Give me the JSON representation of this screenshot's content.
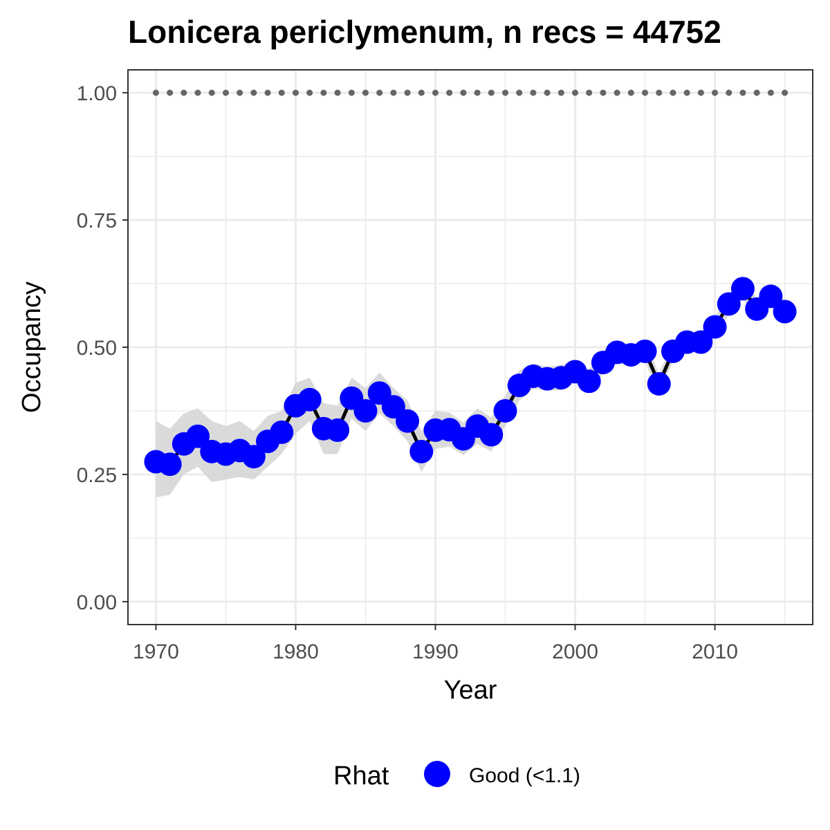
{
  "chart_data": {
    "type": "line",
    "title": "Lonicera periclymenum, n recs = 44752",
    "xlabel": "Year",
    "ylabel": "Occupancy",
    "xlim": [
      1968,
      2017
    ],
    "ylim": [
      -0.045,
      1.045
    ],
    "xticks": [
      1970,
      1980,
      1990,
      2000,
      2010
    ],
    "xtick_labels": [
      "1970",
      "1980",
      "1990",
      "2000",
      "2010"
    ],
    "yticks": [
      0,
      0.25,
      0.5,
      0.75,
      1
    ],
    "ytick_labels": [
      "0.00",
      "0.25",
      "0.50",
      "0.75",
      "1.00"
    ],
    "grid": true,
    "legend": {
      "title": "Rhat",
      "position": "bottom",
      "entries": [
        {
          "label": "Good (<1.1)",
          "color": "#0000ff"
        }
      ]
    },
    "colors": {
      "points": "#0000ff",
      "line": "#000000",
      "ribbon": "#d3d3d3",
      "reference": "#666666",
      "grid": "#ebebeb",
      "border": "#333333"
    },
    "reference_line": {
      "y": 1.0,
      "style": "dotted"
    },
    "x": [
      1970,
      1971,
      1972,
      1973,
      1974,
      1975,
      1976,
      1977,
      1978,
      1979,
      1980,
      1981,
      1982,
      1983,
      1984,
      1985,
      1986,
      1987,
      1988,
      1989,
      1990,
      1991,
      1992,
      1993,
      1994,
      1995,
      1996,
      1997,
      1998,
      1999,
      2000,
      2001,
      2002,
      2003,
      2004,
      2005,
      2006,
      2007,
      2008,
      2009,
      2010,
      2011,
      2012,
      2013,
      2014,
      2015
    ],
    "series": [
      {
        "values": [
          0.275,
          0.27,
          0.31,
          0.325,
          0.295,
          0.29,
          0.297,
          0.285,
          0.315,
          0.333,
          0.385,
          0.397,
          0.34,
          0.337,
          0.4,
          0.375,
          0.41,
          0.383,
          0.355,
          0.295,
          0.337,
          0.338,
          0.32,
          0.345,
          0.328,
          0.375,
          0.425,
          0.443,
          0.438,
          0.44,
          0.452,
          0.433,
          0.47,
          0.49,
          0.485,
          0.492,
          0.428,
          0.492,
          0.51,
          0.51,
          0.54,
          0.585,
          0.615,
          0.575,
          0.6,
          0.57
        ],
        "lower": [
          0.205,
          0.21,
          0.25,
          0.265,
          0.235,
          0.24,
          0.245,
          0.24,
          0.265,
          0.29,
          0.33,
          0.355,
          0.29,
          0.29,
          0.36,
          0.335,
          0.37,
          0.345,
          0.315,
          0.255,
          0.3,
          0.305,
          0.288,
          0.31,
          0.295,
          0.345,
          0.395,
          0.418,
          0.415,
          0.415,
          0.43,
          0.41,
          0.448,
          0.468,
          0.465,
          0.472,
          0.408,
          0.473,
          0.49,
          0.49,
          0.52,
          0.565,
          0.595,
          0.555,
          0.58,
          0.55
        ],
        "upper": [
          0.355,
          0.34,
          0.37,
          0.38,
          0.355,
          0.345,
          0.355,
          0.335,
          0.365,
          0.375,
          0.43,
          0.44,
          0.39,
          0.385,
          0.44,
          0.42,
          0.45,
          0.42,
          0.395,
          0.335,
          0.375,
          0.372,
          0.352,
          0.38,
          0.362,
          0.405,
          0.455,
          0.468,
          0.462,
          0.465,
          0.474,
          0.456,
          0.492,
          0.512,
          0.505,
          0.512,
          0.448,
          0.511,
          0.53,
          0.53,
          0.56,
          0.605,
          0.635,
          0.595,
          0.62,
          0.59
        ]
      }
    ]
  }
}
